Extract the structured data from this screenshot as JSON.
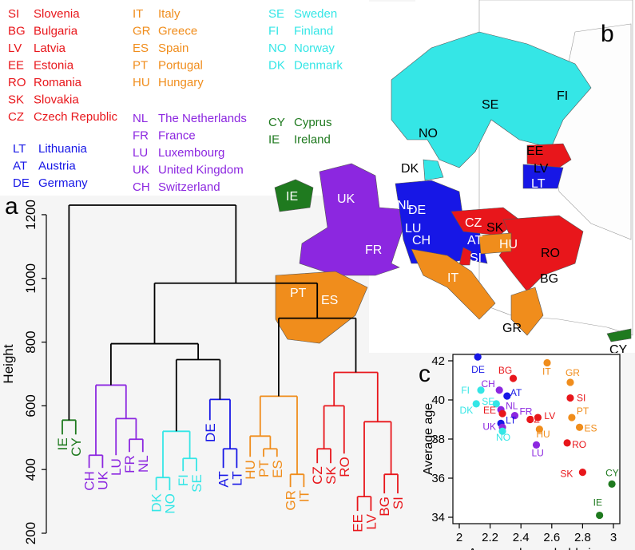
{
  "panel_labels": {
    "a": "a",
    "b": "b",
    "c": "c"
  },
  "colors": {
    "red": "#e8161b",
    "orange": "#f08d1c",
    "cyan": "#35e6e6",
    "purple": "#8c27e0",
    "blue": "#1717e6",
    "green": "#1f7a1f"
  },
  "legend": {
    "red": [
      {
        "code": "SI",
        "name": "Slovenia"
      },
      {
        "code": "BG",
        "name": "Bulgaria"
      },
      {
        "code": "LV",
        "name": "Latvia"
      },
      {
        "code": "EE",
        "name": "Estonia"
      },
      {
        "code": "RO",
        "name": "Romania"
      },
      {
        "code": "SK",
        "name": "Slovakia"
      },
      {
        "code": "CZ",
        "name": "Czech Republic"
      }
    ],
    "blue": [
      {
        "code": "LT",
        "name": "Lithuania"
      },
      {
        "code": "AT",
        "name": "Austria"
      },
      {
        "code": "DE",
        "name": "Germany"
      }
    ],
    "orange": [
      {
        "code": "IT",
        "name": "Italy"
      },
      {
        "code": "GR",
        "name": "Greece"
      },
      {
        "code": "ES",
        "name": "Spain"
      },
      {
        "code": "PT",
        "name": "Portugal"
      },
      {
        "code": "HU",
        "name": "Hungary"
      }
    ],
    "purple": [
      {
        "code": "NL",
        "name": "The Netherlands"
      },
      {
        "code": "FR",
        "name": "France"
      },
      {
        "code": "LU",
        "name": "Luxembourg"
      },
      {
        "code": "UK",
        "name": "United Kingdom"
      },
      {
        "code": "CH",
        "name": "Switzerland"
      }
    ],
    "cyan": [
      {
        "code": "SE",
        "name": "Sweden"
      },
      {
        "code": "FI",
        "name": "Finland"
      },
      {
        "code": "NO",
        "name": "Norway"
      },
      {
        "code": "DK",
        "name": "Denmark"
      }
    ],
    "green": [
      {
        "code": "CY",
        "name": "Cyprus"
      },
      {
        "code": "IE",
        "name": "Ireland"
      }
    ]
  },
  "dendrogram": {
    "ylabel": "Height",
    "yticks": [
      200,
      400,
      600,
      800,
      1000,
      1200
    ],
    "ylim": [
      200,
      1260
    ],
    "leaves": [
      {
        "code": "IE",
        "color": "green"
      },
      {
        "code": "CY",
        "color": "green"
      },
      {
        "code": "CH",
        "color": "purple"
      },
      {
        "code": "UK",
        "color": "purple"
      },
      {
        "code": "LU",
        "color": "purple"
      },
      {
        "code": "FR",
        "color": "purple"
      },
      {
        "code": "NL",
        "color": "purple"
      },
      {
        "code": "DK",
        "color": "cyan"
      },
      {
        "code": "NO",
        "color": "cyan"
      },
      {
        "code": "FI",
        "color": "cyan"
      },
      {
        "code": "SE",
        "color": "cyan"
      },
      {
        "code": "DE",
        "color": "blue"
      },
      {
        "code": "AT",
        "color": "blue"
      },
      {
        "code": "LT",
        "color": "blue"
      },
      {
        "code": "HU",
        "color": "orange"
      },
      {
        "code": "PT",
        "color": "orange"
      },
      {
        "code": "ES",
        "color": "orange"
      },
      {
        "code": "GR",
        "color": "orange"
      },
      {
        "code": "IT",
        "color": "orange"
      },
      {
        "code": "CZ",
        "color": "red"
      },
      {
        "code": "SK",
        "color": "red"
      },
      {
        "code": "RO",
        "color": "red"
      },
      {
        "code": "EE",
        "color": "red"
      },
      {
        "code": "LV",
        "color": "red"
      },
      {
        "code": "BG",
        "color": "red"
      },
      {
        "code": "SI",
        "color": "red"
      }
    ],
    "merges": [
      {
        "a": "IE",
        "b": "CY",
        "h": 555,
        "color": "green"
      },
      {
        "a": "CH",
        "b": "UK",
        "h": 445,
        "color": "purple"
      },
      {
        "a": "FR",
        "b": "NL",
        "h": 495,
        "color": "purple"
      },
      {
        "a": "LU",
        "b": "m3",
        "h": 560,
        "color": "purple"
      },
      {
        "a": "m2",
        "b": "m4",
        "h": 665,
        "color": "purple"
      },
      {
        "a": "DK",
        "b": "NO",
        "h": 375,
        "color": "cyan"
      },
      {
        "a": "FI",
        "b": "SE",
        "h": 435,
        "color": "cyan"
      },
      {
        "a": "m6",
        "b": "m7",
        "h": 520,
        "color": "cyan"
      },
      {
        "a": "AT",
        "b": "LT",
        "h": 465,
        "color": "blue"
      },
      {
        "a": "DE",
        "b": "m9",
        "h": 620,
        "color": "blue"
      },
      {
        "a": "m8",
        "b": "m10",
        "h": 745,
        "color": "black"
      },
      {
        "a": "m5",
        "b": "m11",
        "h": 795,
        "color": "black"
      },
      {
        "a": "PT",
        "b": "ES",
        "h": 465,
        "color": "orange"
      },
      {
        "a": "HU",
        "b": "m13",
        "h": 505,
        "color": "orange"
      },
      {
        "a": "GR",
        "b": "IT",
        "h": 385,
        "color": "orange"
      },
      {
        "a": "m14",
        "b": "m15",
        "h": 630,
        "color": "orange"
      },
      {
        "a": "CZ",
        "b": "SK",
        "h": 465,
        "color": "red"
      },
      {
        "a": "m17",
        "b": "RO",
        "h": 600,
        "color": "red"
      },
      {
        "a": "EE",
        "b": "LV",
        "h": 315,
        "color": "red"
      },
      {
        "a": "BG",
        "b": "SI",
        "h": 385,
        "color": "red"
      },
      {
        "a": "m19",
        "b": "m20",
        "h": 550,
        "color": "red"
      },
      {
        "a": "m18",
        "b": "m21",
        "h": 705,
        "color": "red"
      },
      {
        "a": "m16",
        "b": "m22",
        "h": 875,
        "color": "black"
      },
      {
        "a": "m12",
        "b": "m23",
        "h": 985,
        "color": "black"
      },
      {
        "a": "m1",
        "b": "m24",
        "h": 1230,
        "color": "black"
      }
    ]
  },
  "map_labels": [
    {
      "code": "SE",
      "color": "black"
    },
    {
      "code": "FI",
      "color": "black"
    },
    {
      "code": "NO",
      "color": "black"
    },
    {
      "code": "DK",
      "color": "black"
    },
    {
      "code": "EE",
      "color": "black"
    },
    {
      "code": "LV",
      "color": "black"
    },
    {
      "code": "LT",
      "color": "white"
    },
    {
      "code": "IE",
      "color": "white"
    },
    {
      "code": "UK",
      "color": "white"
    },
    {
      "code": "NL",
      "color": "white"
    },
    {
      "code": "DE",
      "color": "white"
    },
    {
      "code": "LU",
      "color": "white"
    },
    {
      "code": "CH",
      "color": "white"
    },
    {
      "code": "CZ",
      "color": "white"
    },
    {
      "code": "SK",
      "color": "black"
    },
    {
      "code": "AT",
      "color": "white"
    },
    {
      "code": "HU",
      "color": "white"
    },
    {
      "code": "SI",
      "color": "white"
    },
    {
      "code": "FR",
      "color": "white"
    },
    {
      "code": "RO",
      "color": "black"
    },
    {
      "code": "BG",
      "color": "black"
    },
    {
      "code": "IT",
      "color": "white"
    },
    {
      "code": "PT",
      "color": "white"
    },
    {
      "code": "ES",
      "color": "white"
    },
    {
      "code": "GR",
      "color": "black"
    },
    {
      "code": "CY",
      "color": "black"
    }
  ],
  "chart_data": {
    "type": "scatter",
    "xlabel": "Average household size",
    "ylabel": "Average age",
    "xlim": [
      2,
      3
    ],
    "ylim": [
      34,
      42
    ],
    "xticks": [
      2,
      2.2,
      2.4,
      2.6,
      2.8,
      3
    ],
    "yticks": [
      34,
      36,
      38,
      40,
      42
    ],
    "grid": false,
    "points": [
      {
        "code": "DE",
        "x": 2.12,
        "y": 42.2,
        "color": "blue"
      },
      {
        "code": "IT",
        "x": 2.57,
        "y": 41.9,
        "color": "orange"
      },
      {
        "code": "BG",
        "x": 2.35,
        "y": 41.1,
        "color": "red"
      },
      {
        "code": "GR",
        "x": 2.72,
        "y": 40.9,
        "color": "orange"
      },
      {
        "code": "CH",
        "x": 2.26,
        "y": 40.5,
        "color": "purple"
      },
      {
        "code": "FI",
        "x": 2.14,
        "y": 40.5,
        "color": "cyan"
      },
      {
        "code": "AT",
        "x": 2.31,
        "y": 40.2,
        "color": "blue"
      },
      {
        "code": "SI",
        "x": 2.72,
        "y": 40.1,
        "color": "red"
      },
      {
        "code": "SE",
        "x": 2.24,
        "y": 39.8,
        "color": "cyan"
      },
      {
        "code": "DK",
        "x": 2.11,
        "y": 39.8,
        "color": "cyan"
      },
      {
        "code": "NL",
        "x": 2.27,
        "y": 39.5,
        "color": "purple"
      },
      {
        "code": "PT",
        "x": 2.73,
        "y": 39.1,
        "color": "orange"
      },
      {
        "code": "EE",
        "x": 2.28,
        "y": 39.3,
        "color": "red"
      },
      {
        "code": "FR",
        "x": 2.36,
        "y": 39.2,
        "color": "purple"
      },
      {
        "code": "LV",
        "x": 2.51,
        "y": 39.1,
        "color": "red"
      },
      {
        "code": "LT",
        "x": 2.27,
        "y": 38.8,
        "color": "blue"
      },
      {
        "code": "UK",
        "x": 2.28,
        "y": 38.6,
        "color": "purple"
      },
      {
        "code": "CZ",
        "x": 2.46,
        "y": 39.0,
        "color": "red"
      },
      {
        "code": "ES",
        "x": 2.78,
        "y": 38.6,
        "color": "orange"
      },
      {
        "code": "HU",
        "x": 2.52,
        "y": 38.5,
        "color": "orange"
      },
      {
        "code": "NO",
        "x": 2.28,
        "y": 38.4,
        "color": "cyan"
      },
      {
        "code": "RO",
        "x": 2.7,
        "y": 37.8,
        "color": "red"
      },
      {
        "code": "LU",
        "x": 2.5,
        "y": 37.7,
        "color": "purple"
      },
      {
        "code": "SK",
        "x": 2.8,
        "y": 36.3,
        "color": "red"
      },
      {
        "code": "CY",
        "x": 2.99,
        "y": 35.7,
        "color": "green"
      },
      {
        "code": "IE",
        "x": 2.91,
        "y": 34.1,
        "color": "green"
      }
    ]
  }
}
